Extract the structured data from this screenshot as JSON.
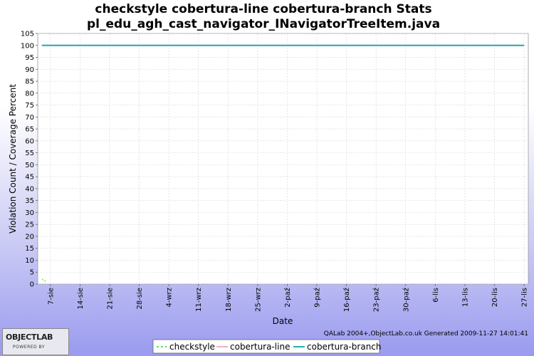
{
  "chart_data": {
    "type": "line",
    "title": [
      "checkstyle cobertura-line cobertura-branch  Stats",
      "pl_edu_agh_cast_navigator_INavigatorTreeItem.java"
    ],
    "xlabel": "Date",
    "ylabel": "Violation Count / Coverage Percent",
    "ylim": [
      0,
      105
    ],
    "yticks": [
      0,
      5,
      10,
      15,
      20,
      25,
      30,
      35,
      40,
      45,
      50,
      55,
      60,
      65,
      70,
      75,
      80,
      85,
      90,
      95,
      100,
      105
    ],
    "x_range": [
      "2009-08-04",
      "2009-11-28"
    ],
    "xticks": [
      {
        "date": "2009-08-07",
        "label": "7-sie"
      },
      {
        "date": "2009-08-14",
        "label": "14-sie"
      },
      {
        "date": "2009-08-21",
        "label": "21-sie"
      },
      {
        "date": "2009-08-28",
        "label": "28-sie"
      },
      {
        "date": "2009-09-04",
        "label": "4-wrz"
      },
      {
        "date": "2009-09-11",
        "label": "11-wrz"
      },
      {
        "date": "2009-09-18",
        "label": "18-wrz"
      },
      {
        "date": "2009-09-25",
        "label": "25-wrz"
      },
      {
        "date": "2009-10-02",
        "label": "2-paź"
      },
      {
        "date": "2009-10-09",
        "label": "9-paź"
      },
      {
        "date": "2009-10-16",
        "label": "16-paź"
      },
      {
        "date": "2009-10-23",
        "label": "23-paź"
      },
      {
        "date": "2009-10-30",
        "label": "30-paź"
      },
      {
        "date": "2009-11-06",
        "label": "6-lis"
      },
      {
        "date": "2009-11-13",
        "label": "13-lis"
      },
      {
        "date": "2009-11-20",
        "label": "20-lis"
      },
      {
        "date": "2009-11-27",
        "label": "27-lis"
      }
    ],
    "grid": true,
    "legend_position": "bottom",
    "series": [
      {
        "name": "checkstyle",
        "color": "#55ee55",
        "dashed": true,
        "points": [
          [
            "2009-08-05",
            2
          ],
          [
            "2009-08-06",
            1
          ]
        ]
      },
      {
        "name": "cobertura-line",
        "color": "#f0b0c0",
        "dashed": false,
        "points": [
          [
            "2009-08-05",
            100
          ],
          [
            "2009-11-27",
            100
          ]
        ]
      },
      {
        "name": "cobertura-branch",
        "color": "#20b0b0",
        "dashed": false,
        "points": [
          [
            "2009-08-05",
            100
          ],
          [
            "2009-11-27",
            100
          ]
        ]
      }
    ]
  },
  "footer_text": "QALab 2004+,ObjectLab.co.uk Generated 2009-11-27 14:01:41",
  "logo": {
    "main": "OBJECTLAB",
    "sub": "POWERED BY"
  }
}
